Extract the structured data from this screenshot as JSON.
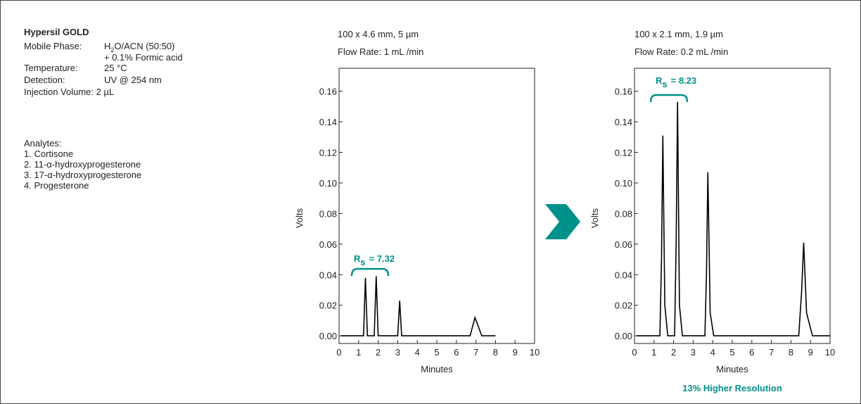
{
  "info": {
    "title": "Hypersil GOLD",
    "mobile_phase": {
      "label": "Mobile Phase:",
      "value_parts": [
        "H",
        "2",
        "O/ACN (50:50)"
      ],
      "line2": "+ 0.1% Formic acid"
    },
    "rows": [
      {
        "label": "Temperature:",
        "value": "25 °C"
      },
      {
        "label": "Detection:",
        "value": "UV @ 254 nm"
      }
    ],
    "injection": "Injection Volume: 2 µL",
    "analytes_title": "Analytes:",
    "analytes": [
      "1. Cortisone",
      "2. 11-α-hydroxyprogesterone",
      "3. 17-α-hydroxyprogesterone",
      "4. Progesterone"
    ]
  },
  "chart_data": [
    {
      "type": "line",
      "subtitle": [
        "100 x 4.6 mm, 5 µm",
        "Flow Rate: 1 mL /min"
      ],
      "xlabel": "Minutes",
      "ylabel": "Volts",
      "color": "#000000",
      "x": [
        0.1,
        1.25,
        1.35,
        1.45,
        1.8,
        1.9,
        2.0,
        3.0,
        3.1,
        3.2,
        6.7,
        6.95,
        7.3,
        8.0
      ],
      "values": [
        0,
        0,
        0.038,
        0,
        0,
        0.039,
        0,
        0,
        0.023,
        0,
        0,
        0.012,
        0,
        0
      ],
      "xlim": [
        0,
        10
      ],
      "xticks": [
        0,
        1,
        2,
        3,
        4,
        5,
        6,
        7,
        8,
        9,
        10
      ],
      "ylim": [
        -0.005,
        0.175
      ],
      "yticks": [
        {
          "value": 0,
          "label": "0.00"
        },
        {
          "value": 0.02,
          "label": "0.02"
        },
        {
          "value": 0.04,
          "label": "0.04"
        },
        {
          "value": 0.06,
          "label": "0.06"
        },
        {
          "value": 0.08,
          "label": "0.08"
        },
        {
          "value": 0.1,
          "label": "0.10"
        },
        {
          "value": 0.12,
          "label": "0.12"
        },
        {
          "value": 0.14,
          "label": "0.14"
        },
        {
          "value": 0.16,
          "label": "0.16"
        }
      ],
      "annotation": {
        "text": "R",
        "subscript": "s",
        "rest": "= 7.32"
      }
    },
    {
      "type": "line",
      "subtitle": [
        "100 x 2.1 mm, 1.9 µm",
        "Flow Rate: 0.2 mL /min"
      ],
      "xlabel": "Minutes",
      "ylabel": "Volts",
      "color": "#000000",
      "x": [
        0.1,
        1.3,
        1.38,
        1.45,
        1.55,
        1.7,
        2.05,
        2.13,
        2.2,
        2.3,
        2.45,
        3.6,
        3.68,
        3.75,
        3.87,
        4.05,
        8.4,
        8.55,
        8.65,
        8.8,
        9.1,
        10.0
      ],
      "values": [
        0,
        0,
        0.05,
        0.131,
        0.02,
        0,
        0,
        0.06,
        0.153,
        0.02,
        0,
        0,
        0.04,
        0.107,
        0.015,
        0,
        0,
        0.03,
        0.061,
        0.015,
        0,
        0
      ],
      "xlim": [
        0,
        10
      ],
      "xticks": [
        0,
        1,
        2,
        3,
        4,
        5,
        6,
        7,
        8,
        9,
        10
      ],
      "ylim": [
        -0.005,
        0.175
      ],
      "yticks": [
        {
          "value": 0,
          "label": "0.00"
        },
        {
          "value": 0.02,
          "label": "0.02"
        },
        {
          "value": 0.04,
          "label": "0.04"
        },
        {
          "value": 0.06,
          "label": "0.06"
        },
        {
          "value": 0.08,
          "label": "0.08"
        },
        {
          "value": 0.1,
          "label": "0.10"
        },
        {
          "value": 0.12,
          "label": "0.12"
        },
        {
          "value": 0.14,
          "label": "0.14"
        },
        {
          "value": 0.16,
          "label": "0.16"
        }
      ],
      "annotation": {
        "text": "R",
        "subscript": "s",
        "rest": "= 8.23"
      },
      "caption": "13% Higher Resolution"
    }
  ]
}
